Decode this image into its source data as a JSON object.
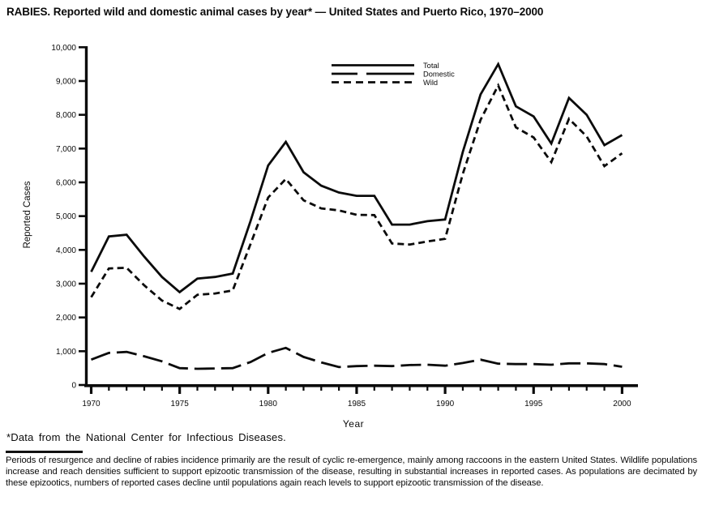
{
  "page": {
    "title": "RABIES. Reported wild and domestic animal cases by year* — United States and Puerto Rico, 1970–2000",
    "footnote": "*Data from the National Center for Infectious Diseases.",
    "note_paragraph": "Periods of resurgence and decline of rabies incidence primarily are the result of cyclic re-emergence, mainly among raccoons in the eastern United States. Wildlife populations increase and reach densities sufficient to support epizootic transmission of the disease, resulting in substantial increases in reported cases. As populations are decimated by these epizootics, numbers of reported cases decline until populations again reach levels to support epizootic transmission of the disease."
  },
  "chart_data": {
    "type": "line",
    "title": "",
    "xlabel": "Year",
    "ylabel": "Reported Cases",
    "ylim": [
      0,
      10000
    ],
    "ytick_step": 1000,
    "ytick_labels": [
      "0",
      "1,000",
      "2,000",
      "3,000",
      "4,000",
      "5,000",
      "6,000",
      "7,000",
      "8,000",
      "9,000",
      "10,000"
    ],
    "xtick_labeled": [
      "1970",
      "1975",
      "1980",
      "1985",
      "1990",
      "1995",
      "2000"
    ],
    "x": [
      1970,
      1971,
      1972,
      1973,
      1974,
      1975,
      1976,
      1977,
      1978,
      1979,
      1980,
      1981,
      1982,
      1983,
      1984,
      1985,
      1986,
      1987,
      1988,
      1989,
      1990,
      1991,
      1992,
      1993,
      1994,
      1995,
      1996,
      1997,
      1998,
      1999,
      2000
    ],
    "series": [
      {
        "name": "Total",
        "style": "solid",
        "values": [
          3350,
          4400,
          4450,
          3800,
          3200,
          2750,
          3150,
          3200,
          3300,
          4850,
          6500,
          7200,
          6300,
          5900,
          5700,
          5600,
          5600,
          4750,
          4750,
          4850,
          4900,
          6900,
          8600,
          9500,
          8250,
          7950,
          7150,
          8500,
          8000,
          7100,
          7400
        ]
      },
      {
        "name": "Domestic",
        "style": "long-dash",
        "values": [
          750,
          950,
          980,
          850,
          700,
          500,
          480,
          490,
          500,
          680,
          950,
          1100,
          830,
          670,
          530,
          560,
          570,
          560,
          590,
          600,
          570,
          650,
          750,
          630,
          620,
          620,
          600,
          640,
          640,
          620,
          540
        ]
      },
      {
        "name": "Wild",
        "style": "short-dash",
        "values": [
          2600,
          3450,
          3470,
          2950,
          2500,
          2250,
          2670,
          2710,
          2800,
          4170,
          5550,
          6100,
          5470,
          5230,
          5170,
          5040,
          5030,
          4190,
          4160,
          4250,
          4330,
          6250,
          7850,
          8870,
          7630,
          7330,
          6600,
          7880,
          7360,
          6480,
          6860
        ]
      }
    ],
    "legend_position": "top-center",
    "grid": false,
    "colors": {
      "line": "#0b0b0b",
      "background": "#ffffff"
    }
  }
}
